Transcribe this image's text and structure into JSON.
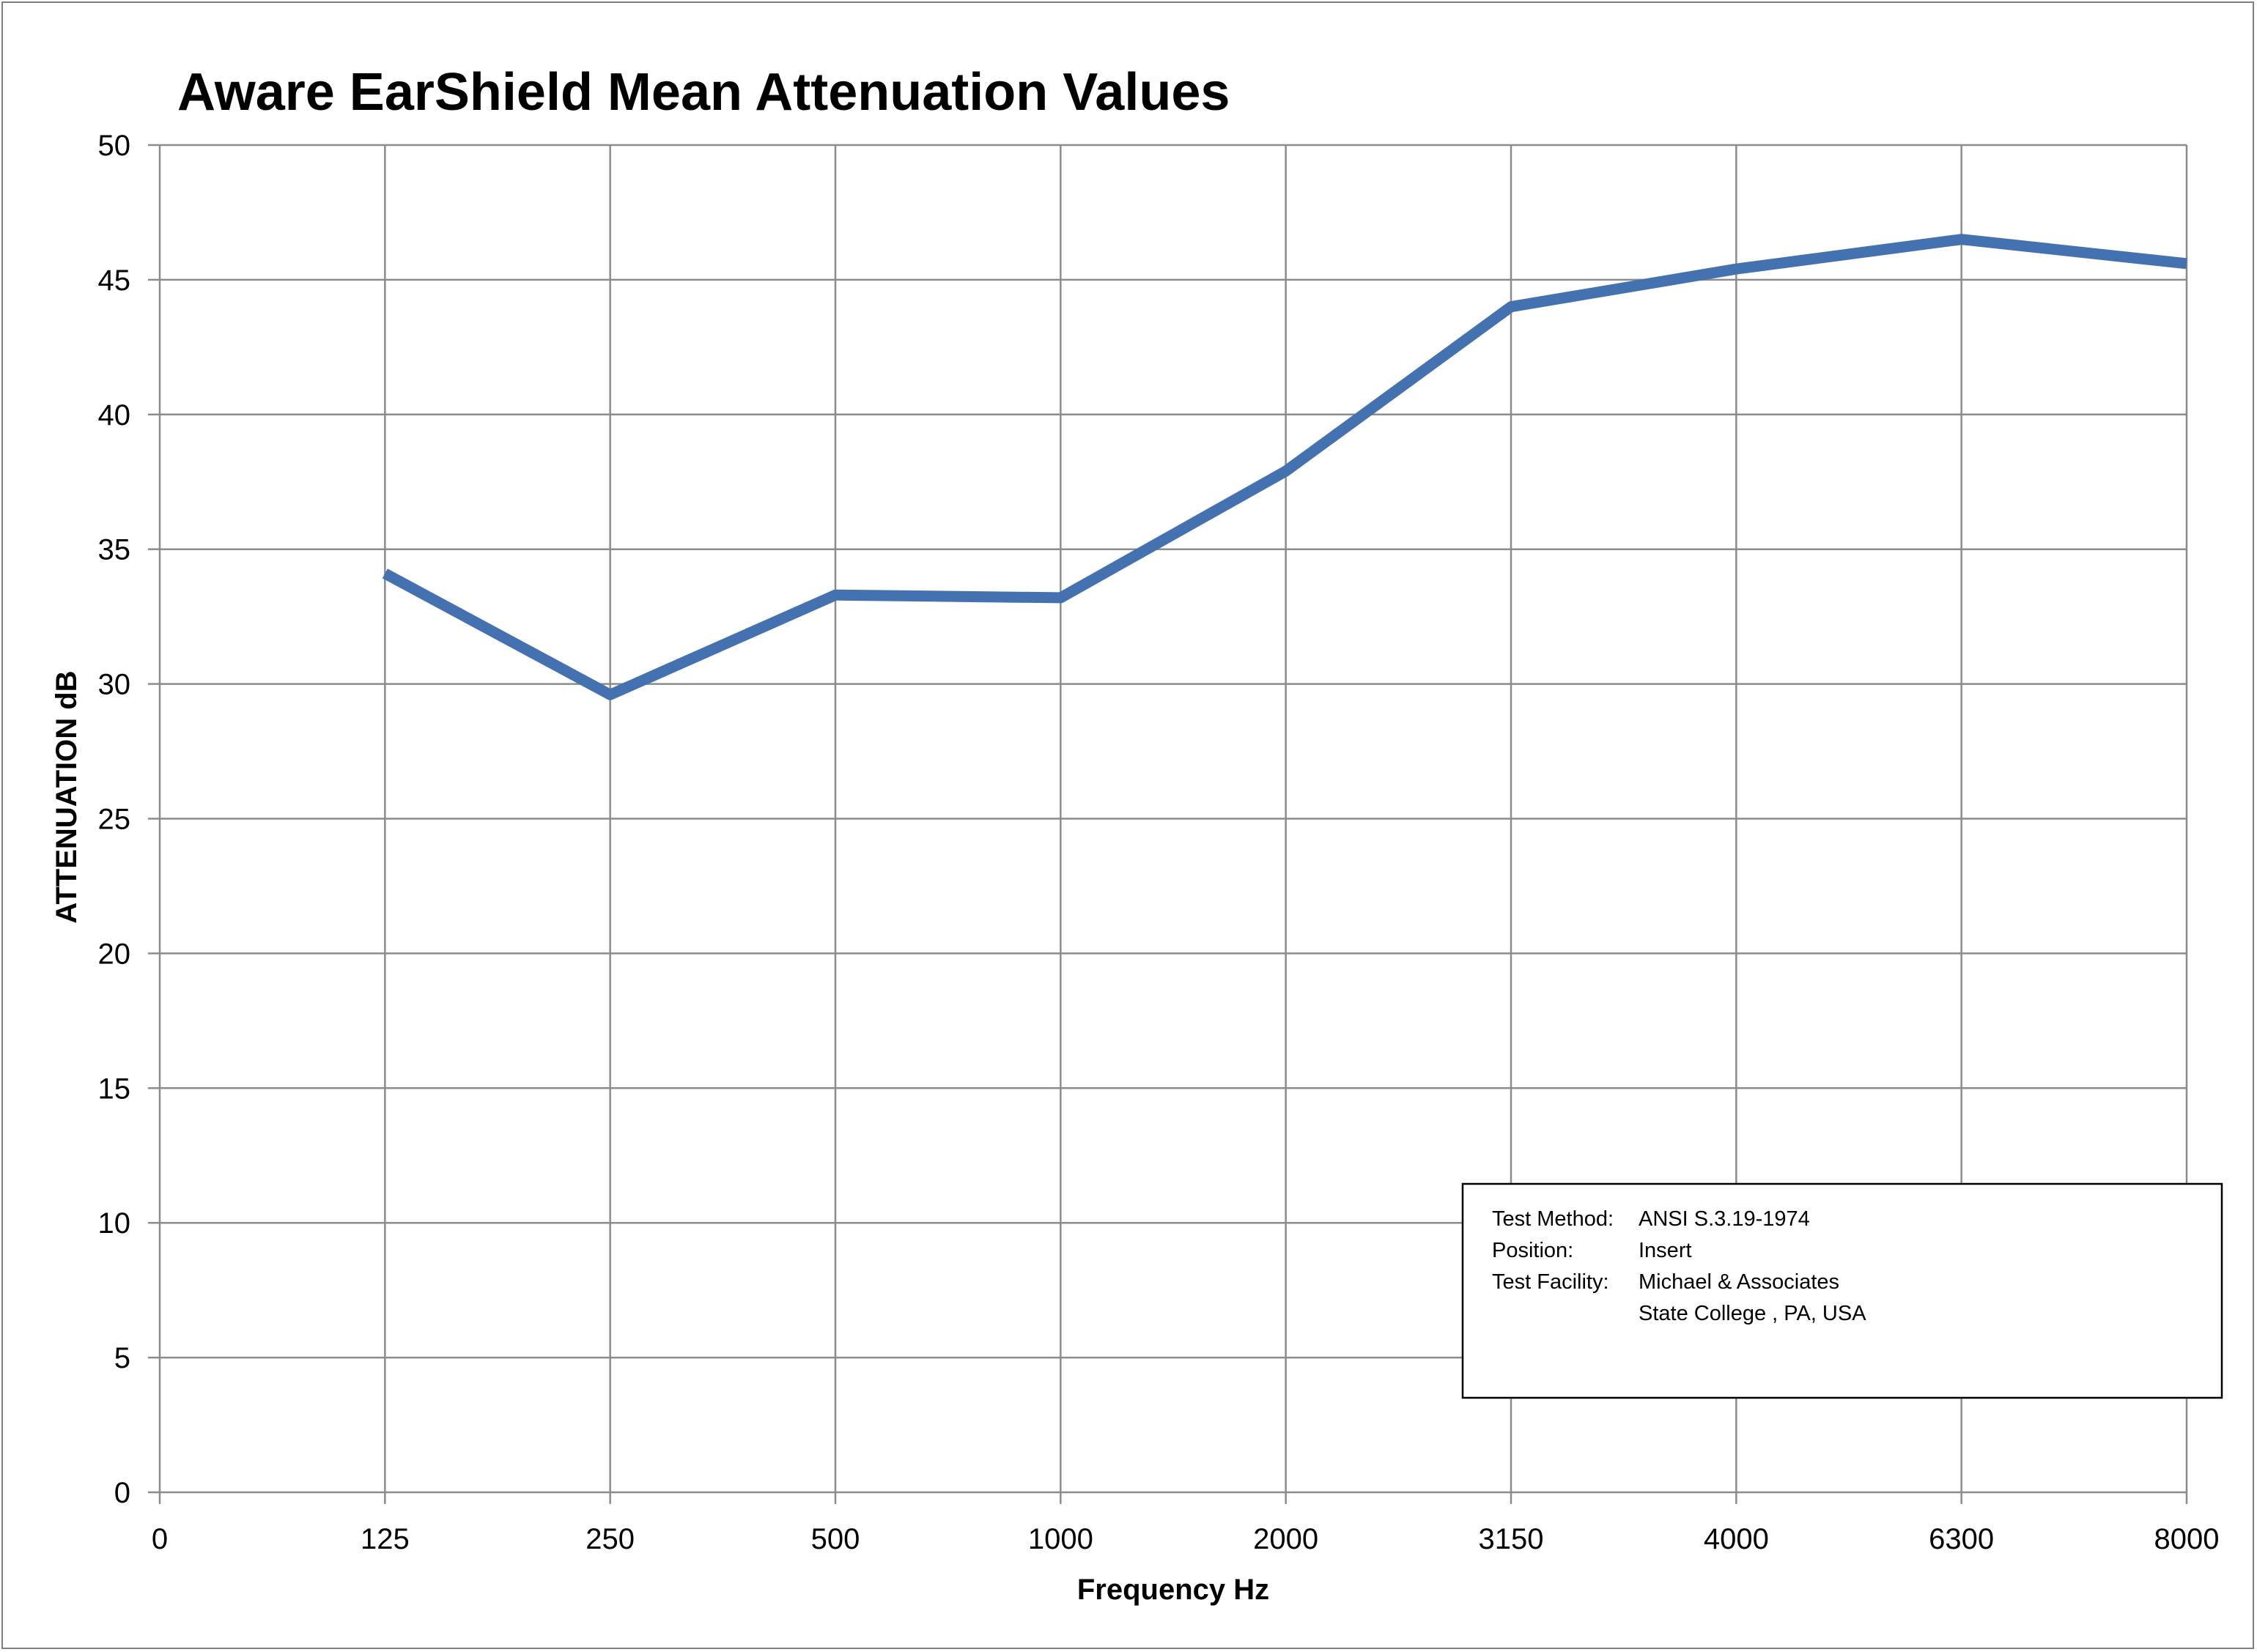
{
  "chart_data": {
    "type": "line",
    "title": "Aware EarShield Mean Attenuation Values",
    "xlabel": "Frequency Hz",
    "ylabel": "ATTENUATION dB",
    "categories": [
      "0",
      "125",
      "250",
      "500",
      "1000",
      "2000",
      "3150",
      "4000",
      "6300",
      "8000"
    ],
    "ylim": [
      0,
      50
    ],
    "yticks": [
      0,
      5,
      10,
      15,
      20,
      25,
      30,
      35,
      40,
      45,
      50
    ],
    "grid": true,
    "series": [
      {
        "color": "#4472b0",
        "points": [
          {
            "x": "125",
            "y": 34.1
          },
          {
            "x": "250",
            "y": 29.6
          },
          {
            "x": "500",
            "y": 33.3
          },
          {
            "x": "1000",
            "y": 33.2
          },
          {
            "x": "2000",
            "y": 37.9
          },
          {
            "x": "3150",
            "y": 44.0
          },
          {
            "x": "4000",
            "y": 45.4
          },
          {
            "x": "6300",
            "y": 46.5
          },
          {
            "x": "8000",
            "y": 45.6
          }
        ]
      }
    ],
    "annotation": {
      "lines": [
        {
          "key": "Test Method:",
          "value": "ANSI S.3.19-1974"
        },
        {
          "key": "Position:",
          "value": "Insert"
        },
        {
          "key": "Test Facility:",
          "value": "Michael & Associates"
        },
        {
          "key": "",
          "value": "State College , PA, USA"
        }
      ]
    }
  }
}
